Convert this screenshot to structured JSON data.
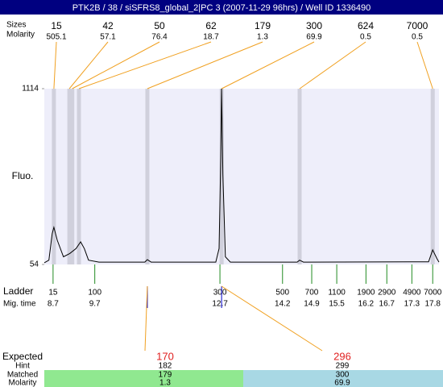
{
  "chart_data": {
    "type": "electropherogram",
    "title": "PTK2B / 38 / siSFRS8_global_2|PC 3 (2007-11-29 96hrs) / Well ID 1336490",
    "peak_size_label": "Sizes",
    "peak_molarity_label": "Molarity",
    "peaks": {
      "sizes": [
        15,
        42,
        50,
        62,
        179,
        300,
        624,
        7000
      ],
      "molarity": [
        505.1,
        57.1,
        76.4,
        18.7,
        1.3,
        69.9,
        0.5,
        0.5
      ],
      "times": [
        8.72,
        9.09,
        9.16,
        9.32,
        10.96,
        12.74,
        14.61,
        17.8
      ]
    },
    "y_label": "Fluo.",
    "ylim": [
      54,
      1114
    ],
    "yticks": [
      54,
      1114
    ],
    "xlim": [
      8.49,
      17.95
    ],
    "trace": {
      "time": [
        8.49,
        8.6,
        8.68,
        8.72,
        8.8,
        8.95,
        9.1,
        9.25,
        9.36,
        9.45,
        9.55,
        9.8,
        10.9,
        10.96,
        11.05,
        12.6,
        12.68,
        12.72,
        12.74,
        12.77,
        12.83,
        12.95,
        14.55,
        14.61,
        14.7,
        17.7,
        17.8,
        17.9,
        17.95
      ],
      "fluo": [
        64,
        80,
        240,
        278,
        200,
        100,
        120,
        150,
        190,
        150,
        80,
        68,
        68,
        83,
        68,
        68,
        150,
        700,
        1114,
        600,
        100,
        68,
        68,
        80,
        68,
        70,
        142,
        90,
        68
      ]
    },
    "ladder_label": "Ladder",
    "migtime_label": "Mig. time",
    "ladder": {
      "sizes": [
        15,
        100,
        300,
        500,
        700,
        1100,
        1900,
        2900,
        4900,
        7000
      ],
      "times": [
        8.7,
        9.7,
        12.7,
        14.2,
        14.9,
        15.5,
        16.2,
        16.7,
        17.3,
        17.8
      ]
    },
    "expected_label": "Expected",
    "hint_label": "Hint",
    "matched_label": "Matched",
    "molarity_label": "Molarity",
    "expected": [
      170,
      296
    ],
    "hint": [
      182,
      299
    ],
    "matched": [
      179,
      300
    ],
    "matched_molarity": [
      1.3,
      69.9
    ],
    "colors": {
      "band": "#d0d0dc",
      "plot": "#eeeefa",
      "connector": "#f0a020",
      "ladder": "#228b22",
      "expected": "#e02020",
      "matched": [
        "#90e890",
        "#a8d8e4"
      ]
    }
  }
}
